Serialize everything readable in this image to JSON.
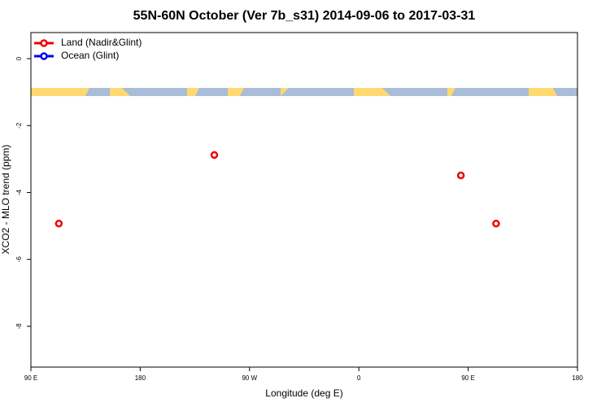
{
  "chart_data": {
    "type": "scatter",
    "title": "55N-60N October (Ver 7b_s31)   2014-09-06 to 2017-03-31",
    "x_label": "Longitude (deg E)",
    "y_label": "XCO2 - MLO trend (ppm)",
    "xlim": [
      90,
      540
    ],
    "ylim": [
      0.78,
      -9.22
    ],
    "xticks": [
      {
        "value": 90,
        "label": "90 E"
      },
      180,
      {
        "value": 270,
        "label": "90 W"
      },
      {
        "value": 360,
        "label": "0"
      },
      {
        "value": 450,
        "label": "90 E"
      },
      {
        "value": 540,
        "label": "180"
      }
    ],
    "yticks": [
      0,
      -2,
      -4,
      -6,
      -8
    ],
    "legend": "top-left",
    "series": [
      {
        "name": "Land (Nadir&Glint)",
        "color": "#ee0000",
        "x": [
          113,
          241,
          444,
          473
        ],
        "values": [
          -4.93,
          -2.88,
          -3.49,
          -4.93
        ]
      },
      {
        "name": "Ocean (Glint)",
        "color": "#0000ee",
        "x": [],
        "values": []
      }
    ]
  }
}
